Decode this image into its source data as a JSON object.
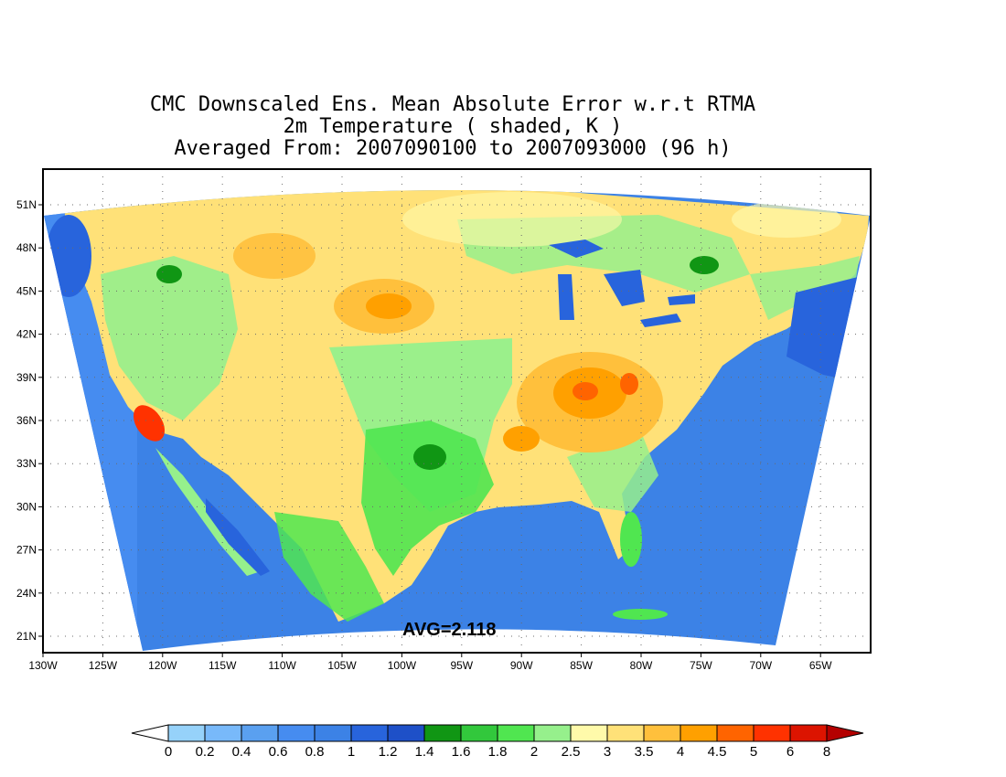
{
  "title": {
    "line1": "CMC Downscaled Ens. Mean Absolute Error w.r.t RTMA",
    "line2": "2m Temperature ( shaded, K )",
    "line3": "Averaged From: 2007090100 to 2007093000 (96 h)"
  },
  "avg_label": "AVG=2.118",
  "lat_labels": [
    "51N",
    "48N",
    "45N",
    "42N",
    "39N",
    "36N",
    "33N",
    "30N",
    "27N",
    "24N",
    "21N"
  ],
  "lon_labels": [
    "130W",
    "125W",
    "120W",
    "115W",
    "110W",
    "105W",
    "100W",
    "95W",
    "90W",
    "85W",
    "80W",
    "75W",
    "70W",
    "65W"
  ],
  "colorbar": {
    "labels": [
      "0",
      "0.2",
      "0.4",
      "0.6",
      "0.8",
      "1",
      "1.2",
      "1.4",
      "1.6",
      "1.8",
      "2",
      "2.5",
      "3",
      "3.5",
      "4",
      "4.5",
      "5",
      "6",
      "8"
    ],
    "colors": [
      "#96d2fa",
      "#78b9fa",
      "#5aa0f0",
      "#468cf0",
      "#3c82e6",
      "#2864dc",
      "#1e50c8",
      "#109614",
      "#32c83c",
      "#50e650",
      "#96f08c",
      "#fffaaa",
      "#ffe178",
      "#ffc03c",
      "#ffa000",
      "#ff6400",
      "#ff3200",
      "#dc1400",
      "#b40000"
    ],
    "under_color": "#ffffff",
    "over_color": "#b40000"
  },
  "field_colors": {
    "ocean": "#3c82e6",
    "ocean_deep": "#2864dc",
    "land_base": "#ffe178",
    "green": "#96f08c",
    "green_mid": "#50e650",
    "green_dark": "#109614",
    "orange": "#ffc03c",
    "orange_dark": "#ffa000",
    "red": "#ff6400",
    "pale": "#fffaaa"
  }
}
